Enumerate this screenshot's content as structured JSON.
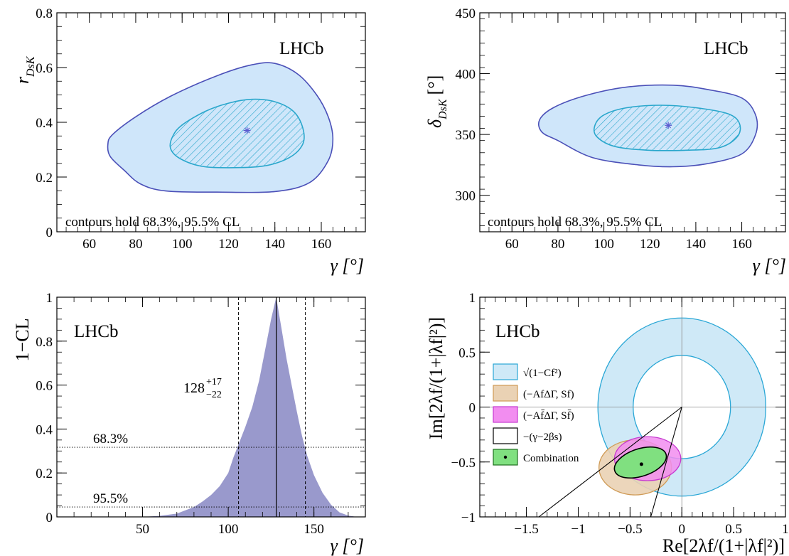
{
  "chart_data": [
    {
      "id": "p1",
      "type": "contour",
      "experiment_label": "LHCb",
      "note": "contours hold 68.3%, 95.5% CL",
      "xlabel": "γ [°]",
      "ylabel": "r",
      "ylabel_sub": "DsK",
      "xlim": [
        46,
        179
      ],
      "ylim": [
        0,
        0.8
      ],
      "xticks": [
        60,
        80,
        100,
        120,
        140,
        160
      ],
      "yticks": [
        0,
        0.2,
        0.4,
        0.6,
        0.8
      ],
      "best_fit": [
        128,
        0.37
      ],
      "colors": {
        "outer_fill": "#cfe6fa",
        "outer_line": "#4b50b8",
        "inner_line": "#2aa7cc",
        "hatch": "#2aa7cc",
        "marker": "#5a5ad0"
      },
      "contour_95": [
        [
          93,
          0.149
        ],
        [
          115,
          0.145
        ],
        [
          140,
          0.147
        ],
        [
          155,
          0.18
        ],
        [
          163,
          0.26
        ],
        [
          165,
          0.34
        ],
        [
          163,
          0.42
        ],
        [
          158,
          0.5
        ],
        [
          150,
          0.575
        ],
        [
          140,
          0.615
        ],
        [
          130,
          0.61
        ],
        [
          115,
          0.57
        ],
        [
          95,
          0.495
        ],
        [
          80,
          0.42
        ],
        [
          70,
          0.355
        ],
        [
          68,
          0.32
        ],
        [
          69,
          0.275
        ],
        [
          75,
          0.225
        ],
        [
          82,
          0.175
        ]
      ],
      "contour_68": [
        [
          108,
          0.24
        ],
        [
          120,
          0.234
        ],
        [
          135,
          0.24
        ],
        [
          146,
          0.27
        ],
        [
          152,
          0.32
        ],
        [
          152,
          0.38
        ],
        [
          148,
          0.44
        ],
        [
          140,
          0.475
        ],
        [
          130,
          0.484
        ],
        [
          120,
          0.47
        ],
        [
          110,
          0.44
        ],
        [
          100,
          0.39
        ],
        [
          96,
          0.35
        ],
        [
          95,
          0.305
        ],
        [
          99,
          0.268
        ]
      ]
    },
    {
      "id": "p2",
      "type": "contour",
      "experiment_label": "LHCb",
      "note": "contours hold 68.3%, 95.5% CL",
      "xlabel": "γ [°]",
      "ylabel": "δ",
      "ylabel_sub": "DsK",
      "ylabel_unit": "[°]",
      "xlim": [
        46,
        179
      ],
      "ylim": [
        270,
        450
      ],
      "xticks": [
        60,
        80,
        100,
        120,
        140,
        160
      ],
      "yticks": [
        300,
        350,
        400,
        450
      ],
      "best_fit": [
        128,
        357.5
      ],
      "colors": {
        "outer_fill": "#cfe6fa",
        "outer_line": "#4b50b8",
        "inner_line": "#2aa7cc",
        "hatch": "#2aa7cc",
        "marker": "#5a5ad0"
      },
      "contour_95": [
        [
          80,
          345
        ],
        [
          95,
          331
        ],
        [
          115,
          325
        ],
        [
          130,
          323.5
        ],
        [
          145,
          326
        ],
        [
          160,
          334
        ],
        [
          166,
          350
        ],
        [
          166,
          366
        ],
        [
          160,
          380
        ],
        [
          145,
          387
        ],
        [
          130,
          390.5
        ],
        [
          110,
          389
        ],
        [
          92,
          382
        ],
        [
          78,
          372
        ],
        [
          72,
          362
        ],
        [
          73,
          352
        ]
      ],
      "contour_68": [
        [
          105,
          340
        ],
        [
          120,
          337
        ],
        [
          135,
          337
        ],
        [
          150,
          339
        ],
        [
          158,
          348
        ],
        [
          159,
          359
        ],
        [
          154,
          367
        ],
        [
          140,
          372
        ],
        [
          125,
          374
        ],
        [
          110,
          372
        ],
        [
          100,
          366
        ],
        [
          96,
          357
        ],
        [
          97,
          348
        ]
      ]
    },
    {
      "id": "p3",
      "type": "area",
      "experiment_label": "LHCb",
      "xlabel": "γ [°]",
      "ylabel": "1−CL",
      "xlim": [
        0,
        180
      ],
      "ylim": [
        0,
        1
      ],
      "xticks": [
        50,
        100,
        150
      ],
      "yticks": [
        0,
        0.2,
        0.4,
        0.6,
        0.8,
        1
      ],
      "x": [
        50,
        60,
        70,
        75,
        80,
        85,
        90,
        95,
        100,
        103,
        106,
        110,
        114,
        118,
        122,
        125,
        128,
        131,
        134,
        137,
        140,
        143,
        146,
        150,
        155,
        160,
        165,
        170,
        175
      ],
      "y": [
        0,
        0.005,
        0.015,
        0.03,
        0.045,
        0.07,
        0.1,
        0.14,
        0.2,
        0.27,
        0.33,
        0.41,
        0.5,
        0.62,
        0.78,
        0.9,
        1.0,
        0.86,
        0.72,
        0.6,
        0.48,
        0.37,
        0.28,
        0.19,
        0.11,
        0.055,
        0.02,
        0.006,
        0.0
      ],
      "central": 128,
      "interval_68": [
        106,
        145
      ],
      "result_value": "128",
      "result_up": "+17",
      "result_down": "−22",
      "cl_lines": [
        {
          "label": "68.3%",
          "y": 0.317
        },
        {
          "label": "95.5%",
          "y": 0.045
        }
      ],
      "colors": {
        "fill": "#9999cc"
      }
    },
    {
      "id": "p4",
      "type": "complex_plane",
      "experiment_label": "LHCb",
      "xlabel": "Re[2λf/(1+|λf|²)]",
      "ylabel": "Im[2λf/(1+|λf|²)]",
      "xlim": [
        -1.95,
        1.0
      ],
      "ylim": [
        -1,
        1
      ],
      "xticks": [
        -1.5,
        -1,
        -0.5,
        0,
        0.5,
        1
      ],
      "xtick_labels": [
        "−1.5",
        "−1",
        "−0.5",
        "0",
        "0.5",
        "1"
      ],
      "yticks": [
        -1,
        -0.5,
        0,
        0.5,
        1
      ],
      "ytick_labels": [
        "−1",
        "−0.5",
        "0",
        "0.5",
        "1"
      ],
      "ring": {
        "r_outer": 0.81,
        "r_inner": 0.47
      },
      "ellipse_f": {
        "cx": -0.45,
        "cy": -0.55,
        "rx": 0.35,
        "ry": 0.25
      },
      "ellipse_fbar": {
        "cx": -0.33,
        "cy": -0.47,
        "rx": 0.32,
        "ry": 0.2
      },
      "ellipse_comb": {
        "cx": -0.4,
        "cy": -0.505,
        "rx": 0.26,
        "ry": 0.125,
        "angle": -18
      },
      "comb_point": [
        -0.39,
        -0.52
      ],
      "lines_from_origin": [
        [
          -1.38,
          -1.0
        ],
        [
          -0.3,
          -1.0
        ]
      ],
      "legend": [
        {
          "label": "√(1−Cf²)",
          "fill": "#cfe9f7",
          "stroke": "#2aa7d6"
        },
        {
          "label": "(−AfΔΓ, Sf)",
          "fill": "#ead2b4",
          "stroke": "#cf9a55"
        },
        {
          "label": "(−Af̄ΔΓ, Sf̄)",
          "fill": "#f28df0",
          "stroke": "#c63ad0"
        },
        {
          "label": "−(γ−2βs)",
          "fill": "#ffffff",
          "stroke": "#000000"
        },
        {
          "label": "Combination",
          "fill": "#80e080",
          "stroke": "#1f6f1f"
        }
      ]
    }
  ]
}
